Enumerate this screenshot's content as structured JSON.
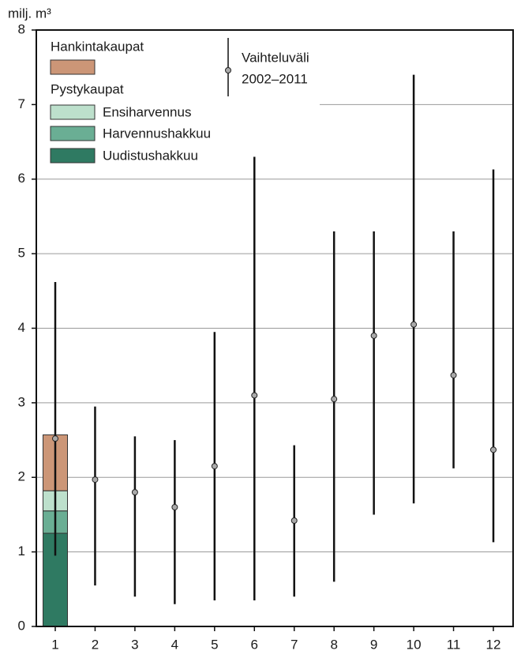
{
  "chart_data": {
    "type": "stacked_bar_range",
    "ylabel": "milj. m³",
    "categories": [
      "1",
      "2",
      "3",
      "4",
      "5",
      "6",
      "7",
      "8",
      "9",
      "10",
      "11",
      "12"
    ],
    "ylim": [
      0,
      8
    ],
    "yticks": [
      0,
      1,
      2,
      3,
      4,
      5,
      6,
      7,
      8
    ],
    "grid": true,
    "series": [
      {
        "name": "Uudistushakkuu",
        "color": "#2f7a62",
        "values": [
          1.25,
          null,
          null,
          null,
          null,
          null,
          null,
          null,
          null,
          null,
          null,
          null
        ]
      },
      {
        "name": "Harvennushakkuu",
        "color": "#6aae94",
        "values": [
          0.3,
          null,
          null,
          null,
          null,
          null,
          null,
          null,
          null,
          null,
          null,
          null
        ]
      },
      {
        "name": "Ensiharvennus",
        "color": "#bde0cc",
        "values": [
          0.27,
          null,
          null,
          null,
          null,
          null,
          null,
          null,
          null,
          null,
          null,
          null
        ]
      },
      {
        "name": "Hankintakaupat",
        "color": "#cc9677",
        "values": [
          0.75,
          null,
          null,
          null,
          null,
          null,
          null,
          null,
          null,
          null,
          null,
          null
        ]
      }
    ],
    "group_label": "Pystykaupat",
    "range": {
      "name": "Vaihteluväli",
      "period": "2002–2011",
      "color": "#111111",
      "min": [
        0.95,
        0.55,
        0.4,
        0.3,
        0.35,
        0.35,
        0.4,
        0.6,
        1.5,
        1.65,
        2.12,
        1.13
      ],
      "max": [
        4.62,
        2.95,
        2.55,
        2.5,
        3.95,
        6.3,
        2.43,
        5.3,
        5.3,
        7.4,
        5.3,
        6.13
      ],
      "mean": [
        2.52,
        1.97,
        1.8,
        1.6,
        2.15,
        3.1,
        1.42,
        3.05,
        3.9,
        4.05,
        3.37,
        2.37
      ]
    }
  }
}
